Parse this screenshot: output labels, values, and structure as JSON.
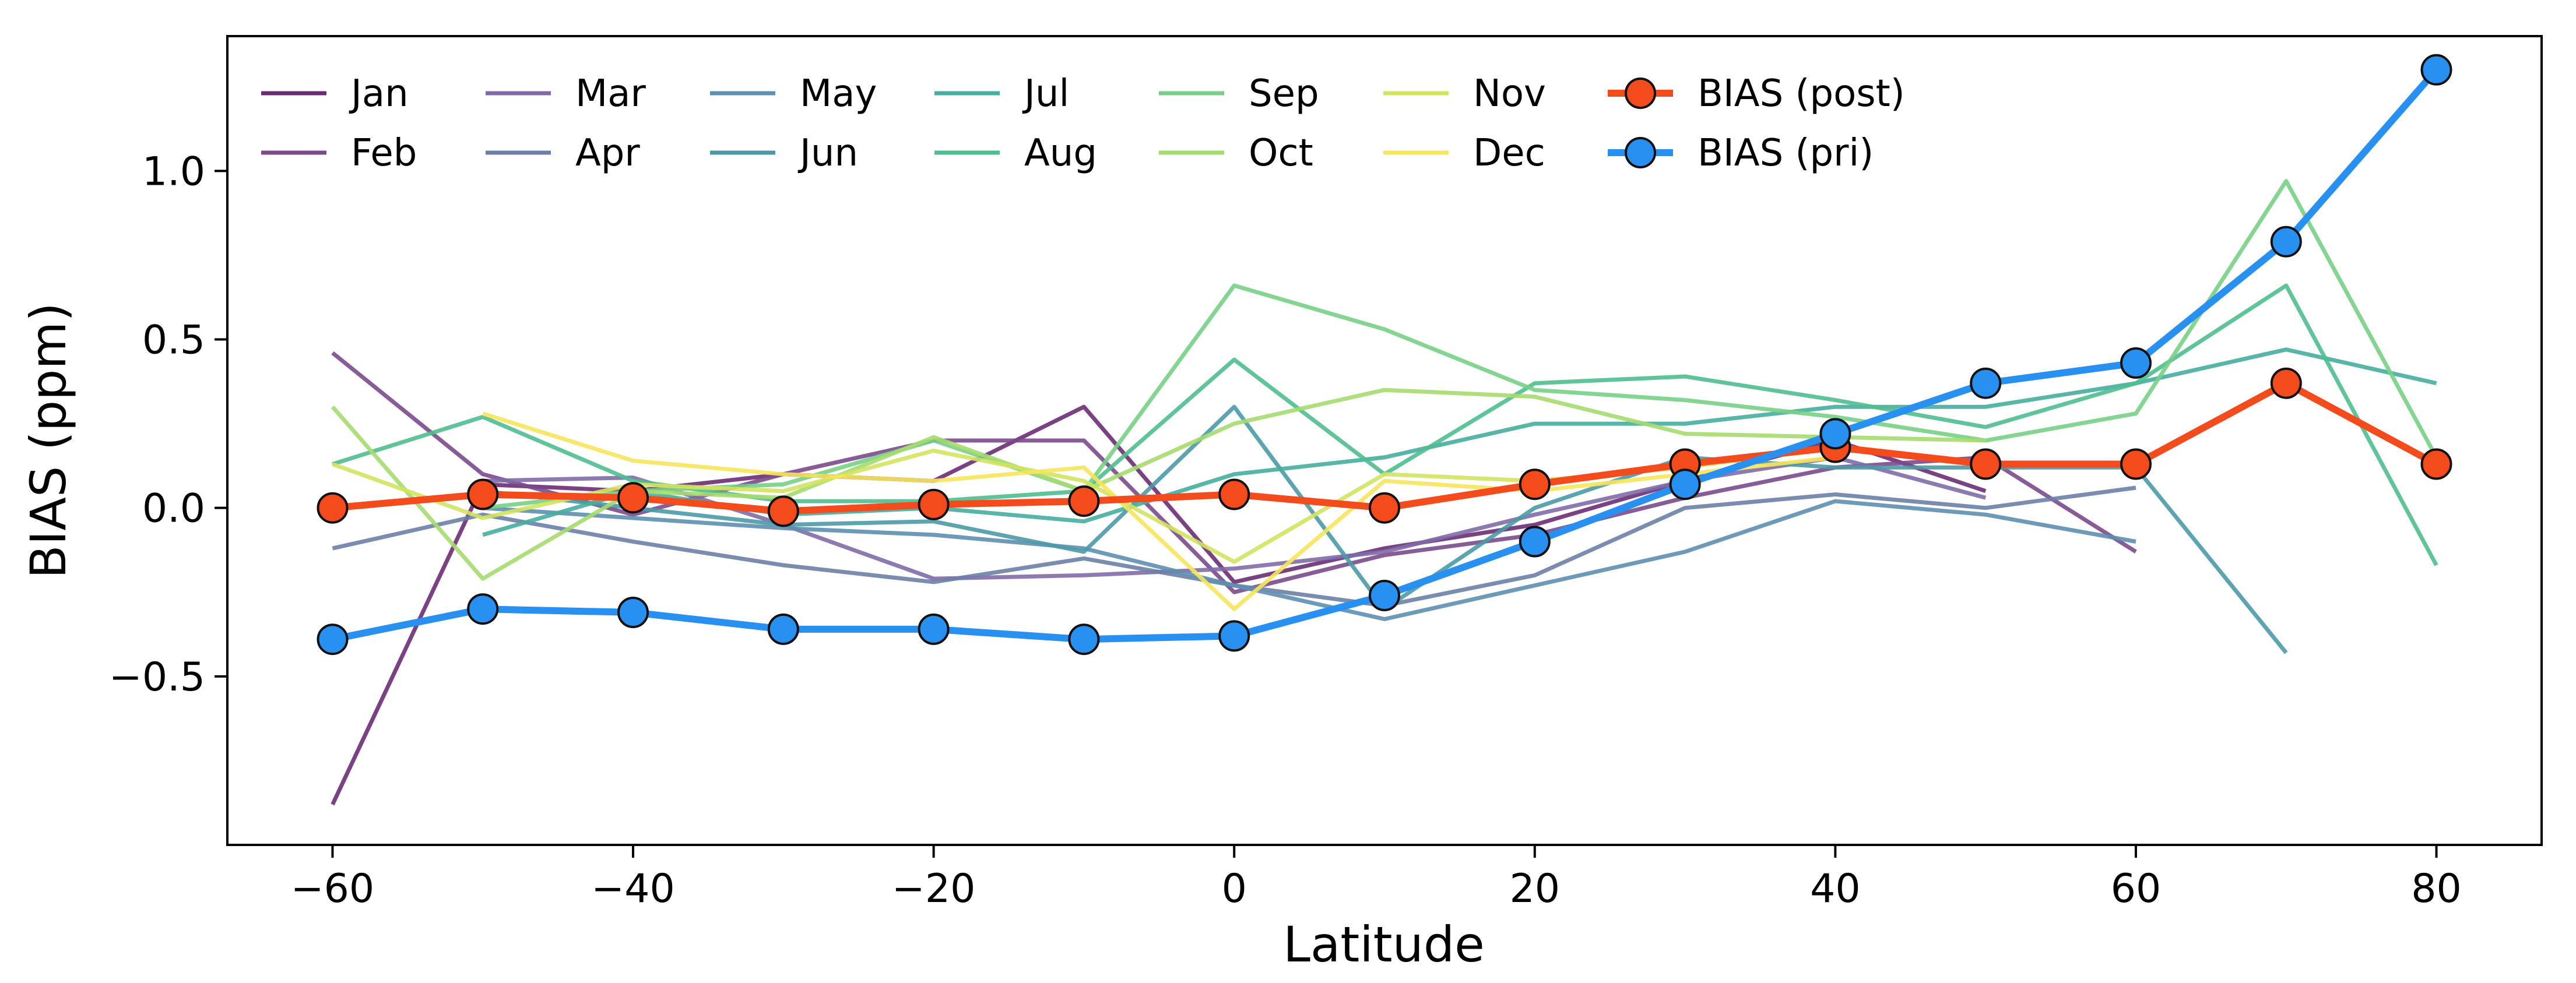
{
  "chart_data": {
    "type": "line",
    "title": "",
    "xlabel": "Latitude",
    "ylabel": "BIAS (ppm)",
    "xlim": [
      -67,
      87
    ],
    "ylim": [
      -1.0,
      1.4
    ],
    "xticks": [
      -60,
      -40,
      -20,
      0,
      20,
      40,
      60,
      80
    ],
    "xtick_labels": [
      "−60",
      "−40",
      "−20",
      "0",
      "20",
      "40",
      "60",
      "80"
    ],
    "yticks": [
      -0.5,
      0.0,
      0.5,
      1.0
    ],
    "ytick_labels": [
      "−0.5",
      "0.0",
      "0.5",
      "1.0"
    ],
    "grid": false,
    "legend_position": "top-left",
    "legend_columns": 7,
    "series": [
      {
        "name": "Jan",
        "color": "#6b2c75",
        "marker": false,
        "x": [
          -60,
          -50,
          -40,
          -30,
          -20,
          -10,
          0,
          10,
          20,
          30,
          40,
          50
        ],
        "y": [
          -0.88,
          0.07,
          0.05,
          0.1,
          0.08,
          0.3,
          -0.22,
          -0.12,
          -0.05,
          0.08,
          0.2,
          0.05
        ]
      },
      {
        "name": "Feb",
        "color": "#7b4a8c",
        "marker": false,
        "x": [
          -60,
          -50,
          -40,
          -30,
          -20,
          -10,
          0,
          10,
          20,
          30,
          40,
          50,
          60
        ],
        "y": [
          0.46,
          0.1,
          -0.02,
          0.1,
          0.2,
          0.2,
          -0.25,
          -0.14,
          -0.08,
          0.03,
          0.12,
          0.15,
          -0.13
        ]
      },
      {
        "name": "Mar",
        "color": "#7f6ba8",
        "marker": false,
        "x": [
          -50,
          -40,
          -30,
          -20,
          -10,
          0,
          10,
          20,
          30,
          40,
          50
        ],
        "y": [
          0.08,
          0.09,
          -0.05,
          -0.21,
          -0.2,
          -0.18,
          -0.13,
          -0.02,
          0.08,
          0.15,
          0.03
        ]
      },
      {
        "name": "Apr",
        "color": "#6d7fa8",
        "marker": false,
        "x": [
          -60,
          -50,
          -40,
          -30,
          -20,
          -10,
          0,
          10,
          20,
          30,
          40,
          50,
          60
        ],
        "y": [
          -0.12,
          -0.02,
          -0.1,
          -0.17,
          -0.22,
          -0.15,
          -0.23,
          -0.29,
          -0.2,
          0.0,
          0.04,
          0.0,
          0.06
        ]
      },
      {
        "name": "May",
        "color": "#5d8fb0",
        "marker": false,
        "x": [
          -50,
          -40,
          -30,
          -20,
          -10,
          0,
          10,
          20,
          30,
          40,
          50,
          60
        ],
        "y": [
          0.0,
          -0.03,
          -0.06,
          -0.08,
          -0.12,
          -0.23,
          -0.33,
          -0.23,
          -0.13,
          0.02,
          -0.02,
          -0.1
        ]
      },
      {
        "name": "Jun",
        "color": "#4a9aa6",
        "marker": false,
        "x": [
          -50,
          -40,
          -30,
          -20,
          -10,
          0,
          10,
          20,
          30,
          40,
          50,
          60,
          70
        ],
        "y": [
          0.05,
          0.0,
          -0.05,
          -0.04,
          -0.13,
          0.3,
          -0.3,
          0.0,
          0.15,
          0.12,
          0.12,
          0.12,
          -0.43
        ]
      },
      {
        "name": "Jul",
        "color": "#45ae9f",
        "marker": false,
        "x": [
          -50,
          -40,
          -30,
          -20,
          -10,
          0,
          10,
          20,
          30,
          40,
          50,
          60,
          70,
          80
        ],
        "y": [
          -0.08,
          0.05,
          -0.02,
          0.0,
          -0.04,
          0.1,
          0.15,
          0.25,
          0.25,
          0.3,
          0.3,
          0.37,
          0.47,
          0.37
        ]
      },
      {
        "name": "Aug",
        "color": "#4fbe8f",
        "marker": false,
        "x": [
          -60,
          -50,
          -40,
          -30,
          -20,
          -10,
          0,
          10,
          20,
          30,
          40,
          50,
          60,
          70,
          80
        ],
        "y": [
          0.13,
          0.27,
          0.08,
          0.02,
          0.02,
          0.05,
          0.44,
          0.1,
          0.37,
          0.39,
          0.32,
          0.24,
          0.37,
          0.66,
          -0.17
        ]
      },
      {
        "name": "Sep",
        "color": "#75d085",
        "marker": false,
        "x": [
          -50,
          -40,
          -30,
          -20,
          -10,
          0,
          10,
          20,
          30,
          40,
          50,
          60,
          70,
          80
        ],
        "y": [
          0.0,
          0.05,
          0.07,
          0.2,
          0.05,
          0.66,
          0.53,
          0.35,
          0.32,
          0.27,
          0.2,
          0.28,
          0.97,
          0.15
        ]
      },
      {
        "name": "Oct",
        "color": "#a5dc6e",
        "marker": false,
        "x": [
          -60,
          -50,
          -40,
          -30,
          -20,
          -10,
          0,
          10,
          20,
          30,
          40,
          50
        ],
        "y": [
          0.3,
          -0.21,
          0.05,
          0.03,
          0.21,
          0.05,
          0.25,
          0.35,
          0.33,
          0.22,
          0.21,
          0.2
        ]
      },
      {
        "name": "Nov",
        "color": "#d3e35f",
        "marker": false,
        "x": [
          -60,
          -50,
          -40,
          -30,
          -20,
          -10,
          0,
          10,
          20,
          30,
          40
        ],
        "y": [
          0.13,
          -0.03,
          0.07,
          0.05,
          0.17,
          0.08,
          -0.16,
          0.1,
          0.08,
          0.12,
          0.18
        ]
      },
      {
        "name": "Dec",
        "color": "#f6e65c",
        "marker": false,
        "x": [
          -50,
          -40,
          -30,
          -20,
          -10,
          0,
          10,
          20,
          30,
          40
        ],
        "y": [
          0.28,
          0.14,
          0.1,
          0.08,
          0.12,
          -0.3,
          0.08,
          0.05,
          0.1,
          0.15
        ]
      },
      {
        "name": "BIAS (post)",
        "color": "#f44b1d",
        "marker": true,
        "x": [
          -60,
          -50,
          -40,
          -30,
          -20,
          -10,
          0,
          10,
          20,
          30,
          40,
          50,
          60,
          70,
          80
        ],
        "y": [
          0.0,
          0.04,
          0.03,
          -0.01,
          0.01,
          0.02,
          0.04,
          0.0,
          0.07,
          0.13,
          0.18,
          0.13,
          0.13,
          0.37,
          0.13
        ]
      },
      {
        "name": "BIAS (pri)",
        "color": "#2790f0",
        "marker": true,
        "x": [
          -60,
          -50,
          -40,
          -30,
          -20,
          -10,
          0,
          10,
          20,
          30,
          40,
          50,
          60,
          70,
          80
        ],
        "y": [
          -0.39,
          -0.3,
          -0.31,
          -0.36,
          -0.36,
          -0.39,
          -0.38,
          -0.26,
          -0.1,
          0.07,
          0.22,
          0.37,
          0.43,
          0.79,
          1.3
        ]
      }
    ]
  }
}
